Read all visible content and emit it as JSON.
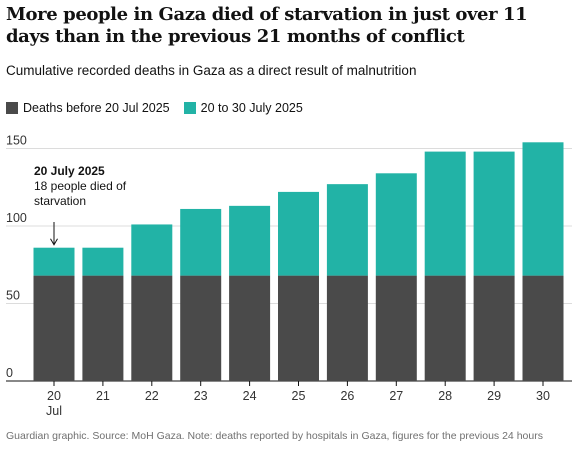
{
  "header": {
    "title": "More people in Gaza died of starvation in just over 11 days than in the previous 21 months of conflict",
    "subtitle": "Cumulative recorded deaths in Gaza as a direct result of malnutrition"
  },
  "source": "Guardian graphic. Source: MoH Gaza. Note: deaths reported by hospitals in Gaza, figures for the previous 24 hours",
  "colors": {
    "before": "#4a4a4a",
    "after": "#22b3a6",
    "grid": "#dcdcdc",
    "axis": "#121212"
  },
  "chart_data": {
    "type": "bar",
    "stacked": true,
    "categories": [
      "20",
      "21",
      "22",
      "23",
      "24",
      "25",
      "26",
      "27",
      "28",
      "29",
      "30"
    ],
    "category_sublabels": [
      "Jul",
      "",
      "",
      "",
      "",
      "",
      "",
      "",
      "",
      "",
      ""
    ],
    "series": [
      {
        "name": "Deaths before 20 Jul 2025",
        "values": [
          68,
          68,
          68,
          68,
          68,
          68,
          68,
          68,
          68,
          68,
          68
        ]
      },
      {
        "name": "20 to 30 July 2025",
        "values": [
          18,
          18,
          33,
          43,
          45,
          54,
          59,
          66,
          80,
          80,
          86
        ]
      }
    ],
    "ylim": [
      0,
      160
    ],
    "yticks": [
      0,
      50,
      100,
      150
    ],
    "grid": true,
    "legend_position": "top-left",
    "annotation": {
      "title": "20 July 2025",
      "lines": [
        "18 people died of",
        "starvation"
      ],
      "category": "20"
    }
  }
}
